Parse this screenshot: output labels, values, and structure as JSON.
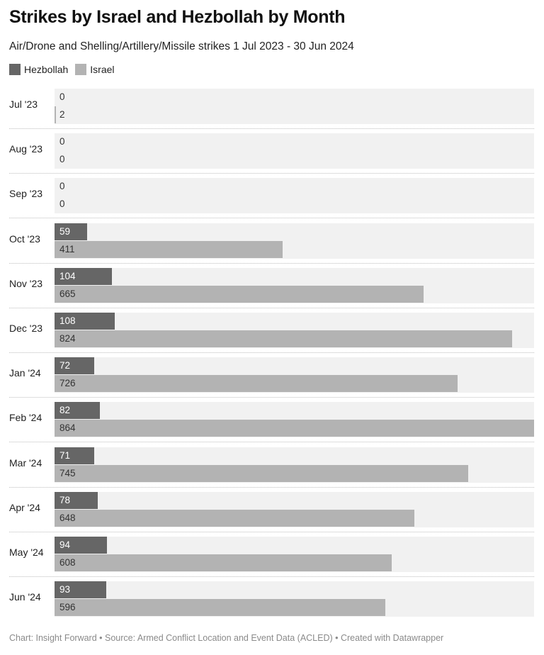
{
  "header": {
    "title": "Strikes by Israel and Hezbollah by Month",
    "subtitle": "Air/Drone and Shelling/Artillery/Missile strikes 1 Jul 2023 - 30 Jun 2024"
  },
  "legend": {
    "items": [
      {
        "label": "Hezbollah",
        "color": "#666666"
      },
      {
        "label": "Israel",
        "color": "#b3b3b3"
      }
    ]
  },
  "colors": {
    "hezbollah": "#666666",
    "israel": "#b3b3b3",
    "track": "#f1f1f1",
    "label_on_dark": "#ffffff",
    "label_on_light": "#333333"
  },
  "footer": {
    "text": "Chart: Insight Forward • Source: Armed Conflict Location and Event Data (ACLED) • Created with Datawrapper"
  },
  "chart_data": {
    "type": "bar",
    "orientation": "horizontal",
    "grouped": true,
    "title": "Strikes by Israel and Hezbollah by Month",
    "subtitle": "Air/Drone and Shelling/Artillery/Missile strikes 1 Jul 2023 - 30 Jun 2024",
    "categories": [
      "Jul '23",
      "Aug '23",
      "Sep '23",
      "Oct '23",
      "Nov '23",
      "Dec '23",
      "Jan '24",
      "Feb '24",
      "Mar '24",
      "Apr '24",
      "May '24",
      "Jun '24"
    ],
    "series": [
      {
        "name": "Hezbollah",
        "values": [
          0,
          0,
          0,
          59,
          104,
          108,
          72,
          82,
          71,
          78,
          94,
          93
        ]
      },
      {
        "name": "Israel",
        "values": [
          2,
          0,
          0,
          411,
          665,
          824,
          726,
          864,
          745,
          648,
          608,
          596
        ]
      }
    ],
    "xlim": [
      0,
      864
    ],
    "grid": false,
    "legend_position": "top-left",
    "data_labels": true
  }
}
